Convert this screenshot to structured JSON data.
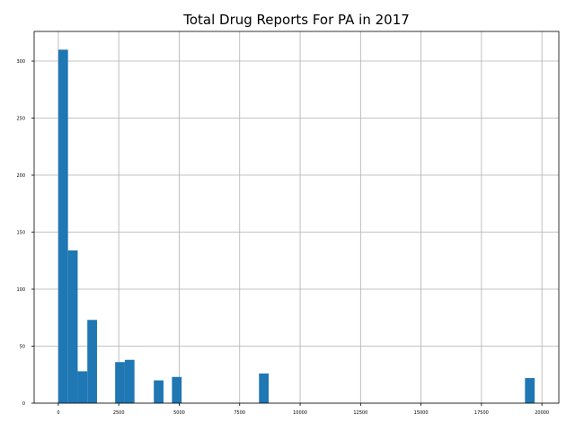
{
  "chart_data": {
    "type": "bar",
    "title": "Total Drug Reports For PA in 2017",
    "xlabel": "",
    "ylabel": "",
    "xlim": [
      -1000,
      20700
    ],
    "ylim": [
      0,
      326
    ],
    "grid": true,
    "xticks": [
      0,
      2500,
      5000,
      7500,
      10000,
      12500,
      15000,
      17500,
      20000
    ],
    "yticks": [
      0,
      50,
      100,
      150,
      200,
      250,
      300
    ],
    "bar_color": "#1f77b4",
    "bins": [
      {
        "x0": 0,
        "x1": 400,
        "count": 310
      },
      {
        "x0": 400,
        "x1": 800,
        "count": 134
      },
      {
        "x0": 800,
        "x1": 1200,
        "count": 28
      },
      {
        "x0": 1200,
        "x1": 1600,
        "count": 73
      },
      {
        "x0": 2350,
        "x1": 2750,
        "count": 36
      },
      {
        "x0": 2750,
        "x1": 3150,
        "count": 38
      },
      {
        "x0": 3950,
        "x1": 4350,
        "count": 20
      },
      {
        "x0": 4700,
        "x1": 5100,
        "count": 23
      },
      {
        "x0": 8300,
        "x1": 8700,
        "count": 26
      },
      {
        "x0": 19300,
        "x1": 19700,
        "count": 22
      }
    ]
  }
}
